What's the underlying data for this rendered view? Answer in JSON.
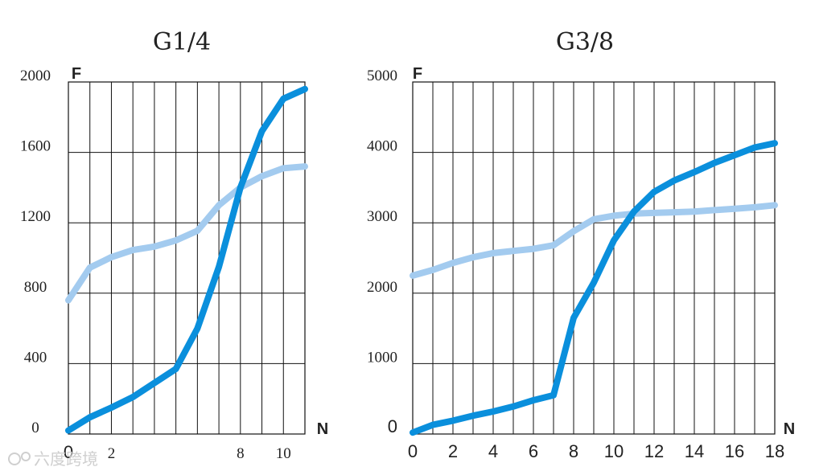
{
  "chart_data": [
    {
      "type": "line",
      "title": "G1/4",
      "ylabel": "F",
      "xlabel": "N",
      "xlim": [
        0,
        11
      ],
      "ylim": [
        0,
        2000
      ],
      "grid": true,
      "x_ticks": [
        {
          "value": 0,
          "label": "0"
        },
        {
          "value": 2,
          "label": "2"
        },
        {
          "value": 8,
          "label": "8"
        },
        {
          "value": 10,
          "label": "10"
        }
      ],
      "y_ticks": [
        {
          "value": 0,
          "label": "0"
        },
        {
          "value": 400,
          "label": "400"
        },
        {
          "value": 800,
          "label": "800"
        },
        {
          "value": 1200,
          "label": "1200"
        },
        {
          "value": 1600,
          "label": "1600"
        },
        {
          "value": 2000,
          "label": "2000"
        }
      ],
      "series": [
        {
          "color": "#a3cbef",
          "x": [
            0,
            1,
            2,
            3,
            4,
            5,
            6,
            7,
            8,
            9,
            10,
            11
          ],
          "values": [
            760,
            945,
            1005,
            1045,
            1065,
            1100,
            1155,
            1300,
            1400,
            1465,
            1510,
            1520
          ]
        },
        {
          "color": "#0a8fdc",
          "x": [
            0,
            1,
            2,
            3,
            4,
            5,
            6,
            7,
            8,
            9,
            10,
            11
          ],
          "values": [
            20,
            95,
            150,
            210,
            290,
            370,
            600,
            950,
            1400,
            1720,
            1905,
            1960
          ]
        }
      ]
    },
    {
      "type": "line",
      "title": "G3/8",
      "ylabel": "F",
      "xlabel": "N",
      "xlim": [
        0,
        18
      ],
      "ylim": [
        0,
        5000
      ],
      "grid": true,
      "x_ticks": [
        {
          "value": 0,
          "label": "0"
        },
        {
          "value": 2,
          "label": "2"
        },
        {
          "value": 4,
          "label": "4"
        },
        {
          "value": 6,
          "label": "6"
        },
        {
          "value": 8,
          "label": "8"
        },
        {
          "value": 10,
          "label": "10"
        },
        {
          "value": 12,
          "label": "12"
        },
        {
          "value": 14,
          "label": "14"
        },
        {
          "value": 16,
          "label": "16"
        },
        {
          "value": 18,
          "label": "18"
        }
      ],
      "y_ticks": [
        {
          "value": 0,
          "label": "0"
        },
        {
          "value": 1000,
          "label": "1000"
        },
        {
          "value": 2000,
          "label": "2000"
        },
        {
          "value": 3000,
          "label": "3000"
        },
        {
          "value": 4000,
          "label": "4000"
        },
        {
          "value": 5000,
          "label": "5000"
        }
      ],
      "series": [
        {
          "color": "#a3cbef",
          "x": [
            0,
            1,
            2,
            3,
            4,
            5,
            6,
            7,
            8,
            9,
            10,
            11,
            12,
            13,
            14,
            15,
            16,
            17,
            18
          ],
          "values": [
            2250,
            2330,
            2430,
            2510,
            2570,
            2600,
            2630,
            2680,
            2880,
            3050,
            3100,
            3130,
            3140,
            3150,
            3160,
            3180,
            3200,
            3220,
            3250
          ]
        },
        {
          "color": "#0a8fdc",
          "x": [
            0,
            1,
            2,
            3,
            4,
            5,
            6,
            7,
            8,
            9,
            10,
            11,
            12,
            13,
            14,
            15,
            16,
            17,
            18
          ],
          "values": [
            20,
            130,
            190,
            260,
            320,
            390,
            480,
            550,
            1650,
            2150,
            2750,
            3160,
            3440,
            3600,
            3720,
            3850,
            3960,
            4070,
            4130
          ]
        }
      ]
    }
  ],
  "watermark": "六度跨境"
}
